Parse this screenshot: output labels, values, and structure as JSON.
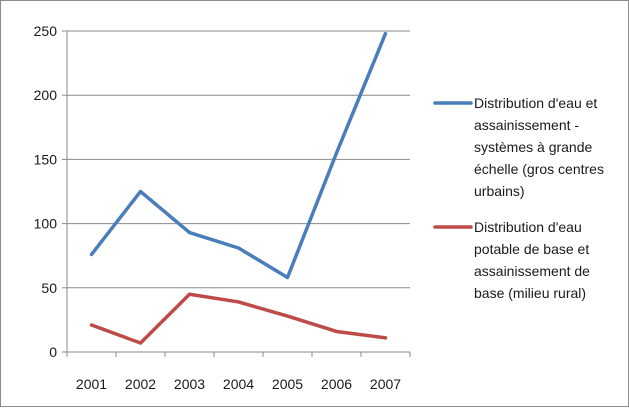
{
  "chart_data": {
    "type": "line",
    "title": "",
    "xlabel": "",
    "ylabel": "",
    "categories": [
      "2001",
      "2002",
      "2003",
      "2004",
      "2005",
      "2006",
      "2007"
    ],
    "ylim": [
      0,
      250
    ],
    "yticks": [
      0,
      50,
      100,
      150,
      200,
      250
    ],
    "grid": "horizontal",
    "legend_position": "right",
    "series": [
      {
        "name": "Distribution d'eau et assainissement - systèmes à grande échelle (gros centres urbains)",
        "legend_lines": [
          "Distribution d'eau et",
          "assainissement -",
          "systèmes à grande",
          "échelle (gros centres",
          "urbains)"
        ],
        "color": "#4a7ebb",
        "values": [
          76,
          125,
          93,
          81,
          58,
          155,
          248
        ]
      },
      {
        "name": "Distribution d'eau potable de base et assainissement de base (milieu rural)",
        "legend_lines": [
          "Distribution d'eau",
          "potable de base et",
          "assainissement de",
          "base (milieu rural)"
        ],
        "color": "#be4b48",
        "values": [
          21,
          7,
          45,
          39,
          28,
          16,
          11
        ]
      }
    ]
  }
}
